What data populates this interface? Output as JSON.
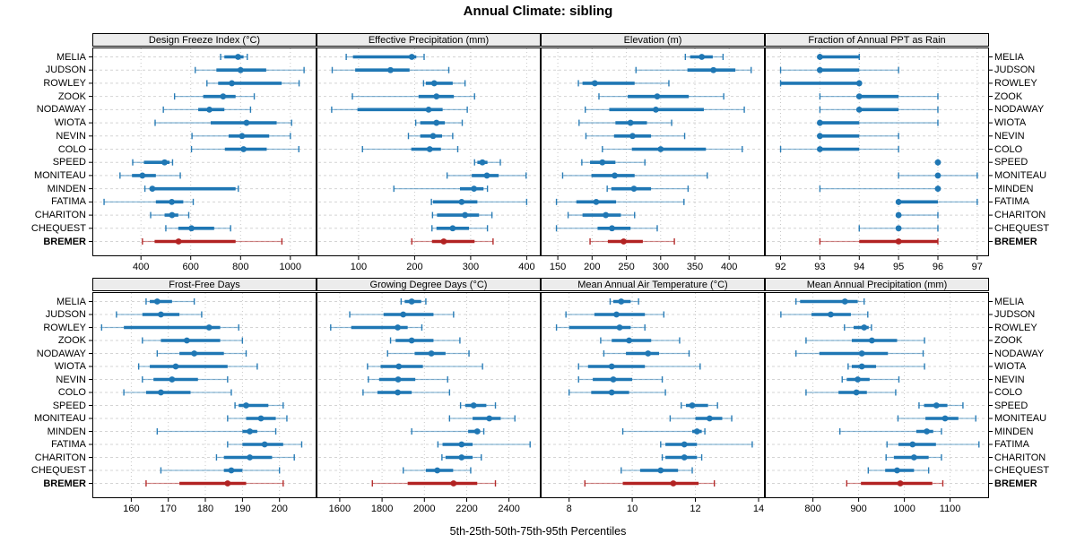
{
  "title": "Annual Climate: sibling",
  "footer_label": "5th-25th-50th-75th-95th Percentiles",
  "stations": [
    "MELIA",
    "JUDSON",
    "ROWLEY",
    "ZOOK",
    "NODAWAY",
    "WIOTA",
    "NEVIN",
    "COLO",
    "SPEED",
    "MONITEAU",
    "MINDEN",
    "FATIMA",
    "CHARITON",
    "CHEQUEST",
    "BREMER"
  ],
  "highlight_station": "BREMER",
  "colors": {
    "series": "#1f77b4",
    "highlight": "#b22222",
    "strip_bg": "#ececec",
    "grid_vertical": "#c8c8c8",
    "grid_horizontal": "#d4d4d4",
    "panel_border": "#000000",
    "tick": "#000000"
  },
  "chart_data": [
    {
      "type": "percentile_dotplot",
      "title": "Design Freeze Index (°C)",
      "row": 1,
      "percentiles": [
        5,
        25,
        50,
        75,
        95
      ],
      "xlim": [
        205,
        1105
      ],
      "ticks": [
        400,
        600,
        800,
        1000
      ],
      "values": {
        "MELIA": [
          720,
          735,
          790,
          812,
          827
        ],
        "JUDSON": [
          618,
          703,
          800,
          903,
          1055
        ],
        "ROWLEY": [
          665,
          710,
          765,
          965,
          1035
        ],
        "ZOOK": [
          535,
          650,
          730,
          780,
          855
        ],
        "NODAWAY": [
          490,
          630,
          675,
          735,
          840
        ],
        "WIOTA": [
          457,
          680,
          824,
          945,
          1005
        ],
        "NEVIN": [
          605,
          752,
          806,
          915,
          1000
        ],
        "COLO": [
          603,
          737,
          812,
          905,
          1034
        ],
        "SPEED": [
          367,
          412,
          495,
          515,
          527
        ],
        "MONITEAU": [
          316,
          364,
          406,
          460,
          558
        ],
        "MINDEN": [
          416,
          435,
          446,
          780,
          791
        ],
        "FATIMA": [
          252,
          460,
          524,
          570,
          610
        ],
        "CHARITON": [
          439,
          495,
          525,
          550,
          592
        ],
        "CHEQUEST": [
          500,
          550,
          603,
          694,
          760
        ],
        "BREMER": [
          406,
          455,
          551,
          780,
          966
        ]
      }
    },
    {
      "type": "percentile_dotplot",
      "title": "Effective Precipitation (mm)",
      "row": 1,
      "percentiles": [
        5,
        25,
        50,
        75,
        95
      ],
      "xlim": [
        25,
        425
      ],
      "ticks": [
        100,
        200,
        300,
        400
      ],
      "values": {
        "MELIA": [
          78,
          90,
          195,
          203,
          217
        ],
        "JUDSON": [
          53,
          94,
          157,
          191,
          261
        ],
        "ROWLEY": [
          216,
          220,
          235,
          268,
          290
        ],
        "ZOOK": [
          89,
          207,
          239,
          270,
          307
        ],
        "NODAWAY": [
          52,
          98,
          225,
          250,
          294
        ],
        "WIOTA": [
          202,
          210,
          239,
          254,
          285
        ],
        "NEVIN": [
          189,
          210,
          233,
          249,
          268
        ],
        "COLO": [
          107,
          194,
          227,
          247,
          277
        ],
        "SPEED": [
          307,
          312,
          321,
          330,
          353
        ],
        "MONITEAU": [
          258,
          302,
          329,
          350,
          399
        ],
        "MINDEN": [
          163,
          281,
          306,
          323,
          330
        ],
        "FATIMA": [
          230,
          233,
          284,
          312,
          400
        ],
        "CHARITON": [
          232,
          240,
          290,
          315,
          338
        ],
        "CHEQUEST": [
          231,
          239,
          268,
          297,
          330
        ],
        "BREMER": [
          195,
          231,
          252,
          307,
          340
        ]
      }
    },
    {
      "type": "percentile_dotplot",
      "title": "Elevation (m)",
      "row": 1,
      "percentiles": [
        5,
        25,
        50,
        75,
        95
      ],
      "xlim": [
        125,
        452
      ],
      "ticks": [
        150,
        200,
        250,
        300,
        350,
        400
      ],
      "values": {
        "MELIA": [
          336,
          343,
          360,
          376,
          391
        ],
        "JUDSON": [
          264,
          339,
          377,
          409,
          432
        ],
        "ROWLEY": [
          180,
          186,
          204,
          262,
          312
        ],
        "ZOOK": [
          210,
          252,
          295,
          341,
          392
        ],
        "NODAWAY": [
          190,
          225,
          293,
          363,
          422
        ],
        "WIOTA": [
          181,
          234,
          256,
          280,
          316
        ],
        "NEVIN": [
          191,
          232,
          259,
          286,
          335
        ],
        "COLO": [
          215,
          258,
          300,
          366,
          419
        ],
        "SPEED": [
          185,
          197,
          215,
          234,
          277
        ],
        "MONITEAU": [
          157,
          199,
          233,
          262,
          368
        ],
        "MINDEN": [
          222,
          228,
          261,
          286,
          340
        ],
        "FATIMA": [
          148,
          177,
          206,
          235,
          334
        ],
        "CHARITON": [
          165,
          186,
          220,
          242,
          262
        ],
        "CHEQUEST": [
          148,
          208,
          229,
          256,
          295
        ],
        "BREMER": [
          197,
          223,
          246,
          274,
          320
        ]
      }
    },
    {
      "type": "percentile_dotplot",
      "title": "Fraction of Annual PPT as Rain",
      "row": 1,
      "percentiles": [
        5,
        25,
        50,
        75,
        95
      ],
      "xlim": [
        91.6,
        97.3
      ],
      "ticks": [
        92,
        93,
        94,
        95,
        96,
        97
      ],
      "values": {
        "MELIA": [
          93,
          93,
          93,
          94,
          94
        ],
        "JUDSON": [
          92,
          93,
          93,
          94,
          95
        ],
        "ROWLEY": [
          92,
          92,
          94,
          94,
          94
        ],
        "ZOOK": [
          93,
          94,
          94,
          95,
          96
        ],
        "NODAWAY": [
          93,
          94,
          94,
          95,
          96
        ],
        "WIOTA": [
          93,
          93,
          93,
          94,
          96
        ],
        "NEVIN": [
          93,
          93,
          93,
          94,
          95
        ],
        "COLO": [
          92,
          93,
          93,
          94,
          95
        ],
        "SPEED": [
          96,
          96,
          96,
          96,
          96
        ],
        "MONITEAU": [
          95,
          96,
          96,
          96,
          97
        ],
        "MINDEN": [
          93,
          96,
          96,
          96,
          96
        ],
        "FATIMA": [
          95,
          95,
          95,
          96,
          97
        ],
        "CHARITON": [
          95,
          95,
          95,
          95,
          96
        ],
        "CHEQUEST": [
          94,
          95,
          95,
          95,
          96
        ],
        "BREMER": [
          93,
          94,
          95,
          96,
          96
        ]
      }
    },
    {
      "type": "percentile_dotplot",
      "title": "Frost-Free Days",
      "row": 2,
      "percentiles": [
        5,
        25,
        50,
        75,
        95
      ],
      "xlim": [
        149.5,
        210
      ],
      "ticks": [
        160,
        170,
        180,
        190,
        200
      ],
      "values": {
        "MELIA": [
          164,
          165,
          167,
          171,
          177
        ],
        "JUDSON": [
          156,
          163,
          168,
          173,
          179
        ],
        "ROWLEY": [
          152,
          158,
          181,
          184,
          189
        ],
        "ZOOK": [
          163,
          168,
          175,
          184,
          190
        ],
        "NODAWAY": [
          167,
          173,
          177,
          185,
          191
        ],
        "WIOTA": [
          162,
          165,
          172,
          186,
          194
        ],
        "NEVIN": [
          163,
          166,
          171,
          178,
          186
        ],
        "COLO": [
          158,
          164,
          168,
          176,
          187
        ],
        "SPEED": [
          188,
          189,
          191,
          197,
          201
        ],
        "MONITEAU": [
          186,
          191,
          195,
          199,
          202
        ],
        "MINDEN": [
          167,
          190,
          192,
          194,
          199
        ],
        "FATIMA": [
          186,
          190,
          196,
          201,
          206
        ],
        "CHARITON": [
          183,
          185,
          192,
          198,
          204
        ],
        "CHEQUEST": [
          168,
          185,
          187,
          190,
          200
        ],
        "BREMER": [
          164,
          173,
          186,
          191,
          201
        ]
      }
    },
    {
      "type": "percentile_dotplot",
      "title": "Growing Degree Days (°C)",
      "row": 2,
      "percentiles": [
        5,
        25,
        50,
        75,
        95
      ],
      "xlim": [
        1490,
        2550
      ],
      "ticks": [
        1600,
        1800,
        2000,
        2200,
        2400
      ],
      "values": {
        "MELIA": [
          1890,
          1907,
          1940,
          1985,
          2007
        ],
        "JUDSON": [
          1647,
          1807,
          1900,
          2043,
          2138
        ],
        "ROWLEY": [
          1557,
          1654,
          1874,
          1921,
          1988
        ],
        "ZOOK": [
          1840,
          1864,
          1940,
          2043,
          2168
        ],
        "NODAWAY": [
          1826,
          1954,
          2033,
          2100,
          2211
        ],
        "WIOTA": [
          1731,
          1793,
          1879,
          1993,
          2275
        ],
        "NEVIN": [
          1735,
          1786,
          1876,
          1957,
          2110
        ],
        "COLO": [
          1710,
          1778,
          1874,
          1940,
          2119
        ],
        "SPEED": [
          2171,
          2193,
          2233,
          2293,
          2336
        ],
        "MONITEAU": [
          2119,
          2228,
          2307,
          2361,
          2428
        ],
        "MINDEN": [
          1940,
          2207,
          2250,
          2264,
          2281
        ],
        "FATIMA": [
          2064,
          2086,
          2176,
          2228,
          2500
        ],
        "CHARITON": [
          2083,
          2100,
          2176,
          2228,
          2269
        ],
        "CHEQUEST": [
          1900,
          2007,
          2061,
          2136,
          2219
        ],
        "BREMER": [
          1754,
          1921,
          2138,
          2250,
          2336
        ]
      }
    },
    {
      "type": "percentile_dotplot",
      "title": "Mean Annual Air Temperature (°C)",
      "row": 2,
      "percentiles": [
        5,
        25,
        50,
        75,
        95
      ],
      "xlim": [
        7.1,
        14.2
      ],
      "ticks": [
        8,
        10,
        12,
        14
      ],
      "values": {
        "MELIA": [
          9.3,
          9.4,
          9.65,
          9.95,
          10.2
        ],
        "JUDSON": [
          7.9,
          8.8,
          9.5,
          10.4,
          11.0
        ],
        "ROWLEY": [
          7.6,
          8.0,
          9.6,
          9.95,
          10.4
        ],
        "ZOOK": [
          9.0,
          9.35,
          9.9,
          10.6,
          11.5
        ],
        "NODAWAY": [
          9.1,
          9.8,
          10.5,
          10.85,
          11.8
        ],
        "WIOTA": [
          8.3,
          8.6,
          9.35,
          10.4,
          12.15
        ],
        "NEVIN": [
          8.3,
          8.75,
          9.4,
          10.0,
          10.95
        ],
        "COLO": [
          8.0,
          8.7,
          9.35,
          9.9,
          11.05
        ],
        "SPEED": [
          11.55,
          11.7,
          11.9,
          12.4,
          12.7
        ],
        "MONITEAU": [
          11.2,
          12.0,
          12.45,
          12.85,
          13.15
        ],
        "MINDEN": [
          9.7,
          11.9,
          12.05,
          12.2,
          12.3
        ],
        "FATIMA": [
          10.9,
          11.05,
          11.65,
          12.05,
          13.8
        ],
        "CHARITON": [
          10.95,
          11.05,
          11.65,
          12.05,
          12.2
        ],
        "CHEQUEST": [
          9.65,
          10.25,
          10.9,
          11.45,
          11.9
        ],
        "BREMER": [
          8.5,
          9.7,
          11.3,
          12.1,
          12.6
        ]
      }
    },
    {
      "type": "percentile_dotplot",
      "title": "Mean Annual Precipitation (mm)",
      "row": 2,
      "percentiles": [
        5,
        25,
        50,
        75,
        95
      ],
      "xlim": [
        695,
        1185
      ],
      "ticks": [
        800,
        900,
        1000,
        1100
      ],
      "values": {
        "MELIA": [
          763,
          772,
          870,
          898,
          912
        ],
        "JUDSON": [
          730,
          797,
          839,
          883,
          920
        ],
        "ROWLEY": [
          869,
          889,
          912,
          922,
          928
        ],
        "ZOOK": [
          785,
          885,
          929,
          984,
          1044
        ],
        "NODAWAY": [
          763,
          814,
          907,
          964,
          1041
        ],
        "WIOTA": [
          877,
          885,
          907,
          938,
          1044
        ],
        "NEVIN": [
          864,
          874,
          898,
          924,
          988
        ],
        "COLO": [
          785,
          856,
          895,
          918,
          981
        ],
        "SPEED": [
          1032,
          1043,
          1070,
          1094,
          1128
        ],
        "MONITEAU": [
          986,
          1046,
          1089,
          1118,
          1156
        ],
        "MINDEN": [
          859,
          1026,
          1049,
          1063,
          1081
        ],
        "FATIMA": [
          962,
          987,
          1018,
          1069,
          1163
        ],
        "CHARITON": [
          960,
          977,
          1021,
          1053,
          1081
        ],
        "CHEQUEST": [
          921,
          958,
          984,
          1021,
          1053
        ],
        "BREMER": [
          874,
          905,
          991,
          1061,
          1084
        ]
      }
    }
  ]
}
